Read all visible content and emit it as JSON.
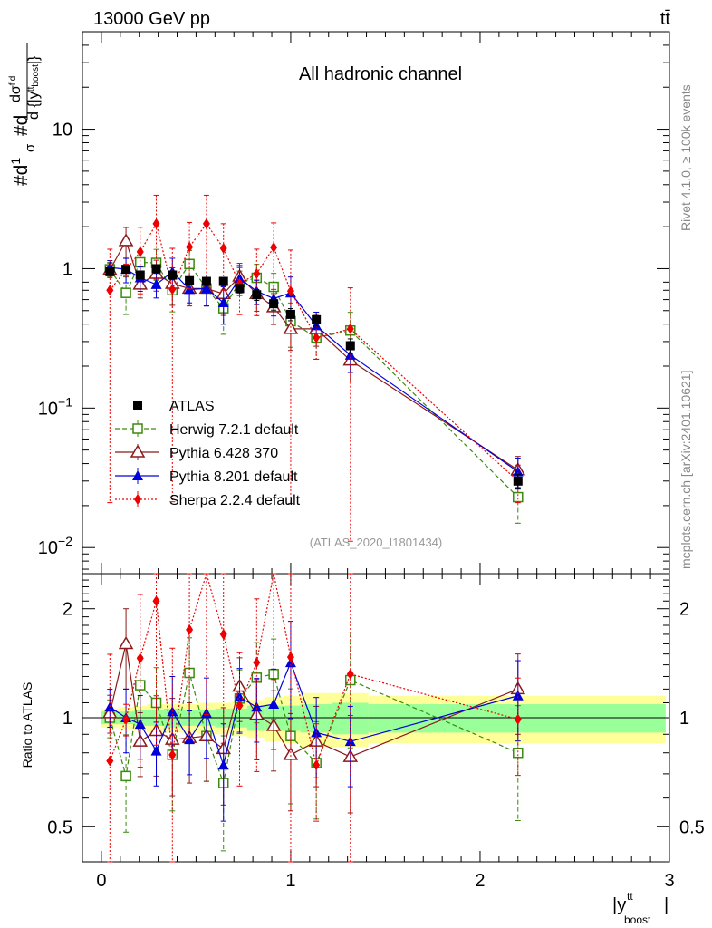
{
  "header": {
    "beam_label": "13000 GeV pp",
    "process_label": "tt̄",
    "channel_title": "All hadronic channel",
    "analysis_id": "(ATLAS_2020_I1801434)",
    "side_rivet": "Rivet 4.1.0, ≥ 100k events",
    "side_mcplots": "mcplots.cern.ch [arXiv:2401.10621]"
  },
  "chart_data": {
    "type": "scatter",
    "title": "All hadronic channel",
    "xlabel": "|y^tt_boost|",
    "ylabel": "1/σ dσ^fid/d{|y^tt_boost|}",
    "ratio_ylabel": "Ratio to ATLAS",
    "xlim": [
      -0.1,
      3.0
    ],
    "ylim": [
      0.0065,
      50
    ],
    "ratio_ylim": [
      0.4,
      2.5
    ],
    "yscale": "log",
    "x_ticks": [
      "0",
      "1",
      "2",
      "3"
    ],
    "y_ticks": [
      "10^-2",
      "10^-1",
      "1",
      "10"
    ],
    "ratio_ticks": [
      "0.5",
      "1",
      "2"
    ],
    "x": [
      0.045,
      0.13,
      0.205,
      0.29,
      0.375,
      0.465,
      0.555,
      0.645,
      0.73,
      0.82,
      0.91,
      1.0,
      1.135,
      1.315,
      2.2
    ],
    "bin_edges": [
      0.0,
      0.09,
      0.17,
      0.24,
      0.33,
      0.42,
      0.51,
      0.6,
      0.69,
      0.77,
      0.86,
      0.96,
      1.05,
      1.22,
      1.41,
      3.0
    ],
    "band_inner_half": [
      0.04,
      0.04,
      0.05,
      0.05,
      0.06,
      0.05,
      0.05,
      0.06,
      0.06,
      0.08,
      0.08,
      0.08,
      0.09,
      0.1,
      0.09
    ],
    "band_outer_half": [
      0.06,
      0.07,
      0.08,
      0.09,
      0.09,
      0.09,
      0.1,
      0.1,
      0.11,
      0.12,
      0.14,
      0.15,
      0.17,
      0.17,
      0.15
    ],
    "series": [
      {
        "name": "ATLAS",
        "color": "#000000",
        "marker": "square-filled",
        "line": "none",
        "values": [
          0.95,
          0.99,
          0.9,
          1.0,
          0.9,
          0.82,
          0.81,
          0.81,
          0.72,
          0.65,
          0.56,
          0.47,
          0.43,
          0.28,
          0.03
        ],
        "ratio": [
          1,
          1,
          1,
          1,
          1,
          1,
          1,
          1,
          1,
          1,
          1,
          1,
          1,
          1,
          1
        ],
        "err_rel": [
          0.05,
          0.05,
          0.06,
          0.06,
          0.07,
          0.06,
          0.06,
          0.07,
          0.07,
          0.09,
          0.1,
          0.1,
          0.1,
          0.12,
          0.12
        ]
      },
      {
        "name": "Herwig 7.2.1 default",
        "color": "#3a8a0e",
        "marker": "square-open",
        "line": "dashed",
        "values": [
          0.99,
          0.67,
          1.11,
          1.1,
          0.7,
          1.08,
          0.72,
          0.52,
          0.8,
          0.86,
          0.74,
          0.42,
          0.32,
          0.36,
          0.023
        ],
        "ratio": [
          1.0,
          0.69,
          1.23,
          1.1,
          0.79,
          1.33,
          0.89,
          0.66,
          1.13,
          1.29,
          1.32,
          0.89,
          0.75,
          1.27,
          0.8
        ],
        "err_rel": [
          0.12,
          0.3,
          0.2,
          0.25,
          0.3,
          0.25,
          0.25,
          0.35,
          0.2,
          0.25,
          0.25,
          0.35,
          0.3,
          0.35,
          0.35
        ]
      },
      {
        "name": "Pythia 6.428 370",
        "color": "#8b1a1a",
        "marker": "triangle-open",
        "line": "solid",
        "values": [
          0.98,
          1.58,
          0.77,
          0.92,
          0.78,
          0.72,
          0.72,
          0.66,
          0.88,
          0.66,
          0.53,
          0.37,
          0.37,
          0.22,
          0.036
        ],
        "ratio": [
          1.03,
          1.6,
          0.86,
          0.92,
          0.87,
          0.88,
          0.89,
          0.82,
          1.22,
          1.02,
          0.95,
          0.79,
          0.86,
          0.78,
          1.2
        ],
        "err_rel": [
          0.12,
          0.25,
          0.2,
          0.25,
          0.3,
          0.25,
          0.25,
          0.3,
          0.2,
          0.25,
          0.25,
          0.3,
          0.25,
          0.3,
          0.25
        ]
      },
      {
        "name": "Pythia 8.201 default",
        "color": "#0000dd",
        "marker": "triangle-filled",
        "line": "solid",
        "values": [
          1.02,
          0.99,
          0.86,
          0.77,
          0.95,
          0.71,
          0.72,
          0.57,
          0.85,
          0.69,
          0.61,
          0.67,
          0.39,
          0.24,
          0.035
        ],
        "ratio": [
          1.07,
          1.0,
          0.96,
          0.81,
          1.04,
          0.87,
          1.03,
          0.74,
          1.14,
          1.07,
          1.09,
          1.42,
          0.91,
          0.86,
          1.15
        ],
        "err_rel": [
          0.12,
          0.2,
          0.2,
          0.2,
          0.25,
          0.2,
          0.25,
          0.3,
          0.2,
          0.2,
          0.25,
          0.3,
          0.25,
          0.25,
          0.25
        ]
      },
      {
        "name": "Sherpa 2.2.4 default",
        "color": "#ee0000",
        "marker": "diamond-filled",
        "line": "dotted",
        "values": [
          0.7,
          0.98,
          1.32,
          2.1,
          0.71,
          1.43,
          2.1,
          1.4,
          0.78,
          0.92,
          1.42,
          0.69,
          0.32,
          0.37,
          0.03
        ],
        "ratio": [
          0.76,
          0.99,
          1.46,
          2.1,
          0.79,
          1.75,
          2.55,
          1.7,
          1.08,
          1.42,
          2.55,
          1.47,
          0.74,
          1.32,
          0.99
        ],
        "err_rel": [
          0.97,
          0.1,
          0.5,
          0.6,
          0.97,
          0.5,
          0.6,
          0.5,
          0.4,
          0.5,
          0.5,
          0.97,
          0.3,
          0.97,
          0.3
        ]
      }
    ]
  }
}
